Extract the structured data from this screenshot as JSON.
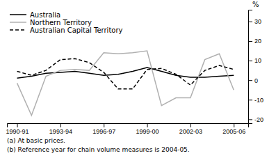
{
  "chart_data": {
    "type": "line",
    "x": [
      1990.5,
      1991.5,
      1992.5,
      1993.5,
      1994.5,
      1995.5,
      1996.5,
      1997.5,
      1998.5,
      1999.5,
      2000.5,
      2001.5,
      2002.5,
      2003.5,
      2004.5,
      2005.5
    ],
    "series": [
      {
        "name": "Australia",
        "color": "#000000",
        "line_style": "solid",
        "values": [
          1.0,
          2.0,
          3.5,
          4.0,
          4.5,
          3.5,
          2.5,
          3.0,
          4.5,
          6.5,
          4.5,
          2.5,
          1.5,
          1.5,
          2.0,
          2.5
        ]
      },
      {
        "name": "Northern Territory",
        "color": "#b0b0b0",
        "line_style": "solid",
        "values": [
          -1.5,
          -18.0,
          2.0,
          5.0,
          5.5,
          5.0,
          14.0,
          13.5,
          14.0,
          15.0,
          -13.0,
          -9.0,
          -9.0,
          10.5,
          13.5,
          -5.0
        ]
      },
      {
        "name": "Australian Capital Territory",
        "color": "#000000",
        "line_style": "dashed",
        "values": [
          4.5,
          2.5,
          5.0,
          10.5,
          11.0,
          9.0,
          4.0,
          -4.5,
          -4.5,
          5.5,
          6.0,
          3.0,
          -2.5,
          5.0,
          7.5,
          5.5
        ]
      }
    ],
    "xlim": [
      1989.8,
      2006.5
    ],
    "xticks": [
      {
        "value": 1990.5,
        "label": "1990-91"
      },
      {
        "value": 1993.5,
        "label": "1993-94"
      },
      {
        "value": 1996.5,
        "label": "1996-97"
      },
      {
        "value": 1999.5,
        "label": "1999-00"
      },
      {
        "value": 2002.5,
        "label": "2002-03"
      },
      {
        "value": 2005.5,
        "label": "2005-06"
      }
    ],
    "ylim": [
      -22,
      36
    ],
    "yticks": [
      -20,
      -10,
      0,
      10,
      20,
      30
    ],
    "y_label": "%",
    "annotations": [
      "(a) At basic prices.",
      "(b) Reference year for chain volume measures is 2004-05."
    ],
    "legend": "upper left"
  }
}
